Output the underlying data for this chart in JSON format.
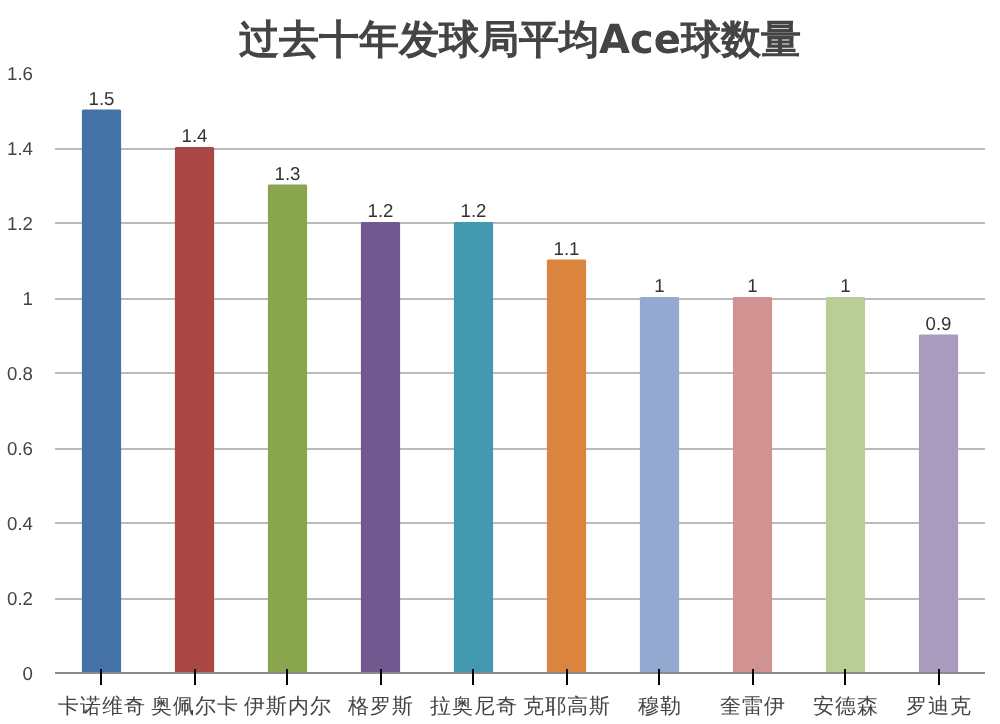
{
  "chart_data": {
    "type": "bar",
    "title": "过去十年发球局平均Ace球数量",
    "categories": [
      "卡诺维奇",
      "奥佩尔卡",
      "伊斯内尔",
      "格罗斯",
      "拉奥尼奇",
      "克耶高斯",
      "穆勒",
      "奎雷伊",
      "安德森",
      "罗迪克"
    ],
    "values": [
      1.5,
      1.4,
      1.3,
      1.2,
      1.2,
      1.1,
      1,
      1,
      1,
      0.9
    ],
    "colors": [
      "#4572a7",
      "#aa4643",
      "#89a54e",
      "#71588f",
      "#4198af",
      "#db843d",
      "#93a9cf",
      "#d19392",
      "#b9cd96",
      "#a99bbd"
    ],
    "ylim": [
      0,
      1.6
    ],
    "yticks": [
      0,
      0.2,
      0.4,
      0.6,
      0.8,
      1,
      1.2,
      1.4,
      1.6
    ],
    "grid": "y",
    "data_labels": true
  }
}
